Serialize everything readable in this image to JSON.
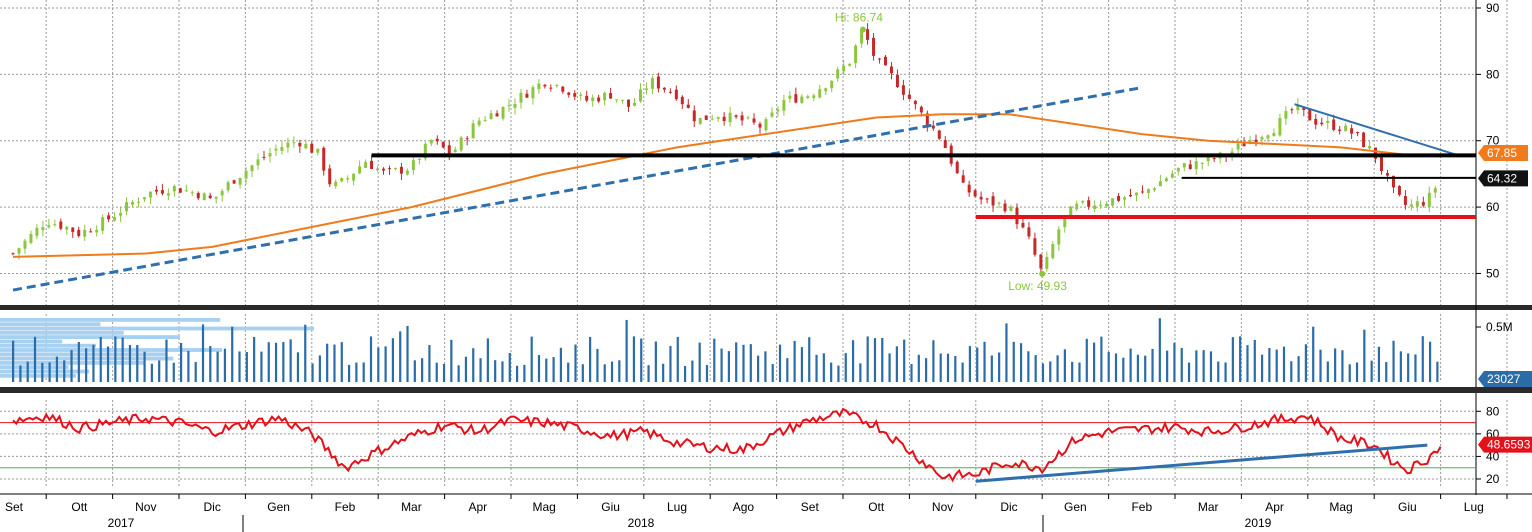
{
  "chart_data": {
    "type": "line",
    "months": [
      "Set",
      "Ott",
      "Nov",
      "Dic",
      "Gen",
      "Feb",
      "Mar",
      "Apr",
      "Mag",
      "Giu",
      "Lug",
      "Ago",
      "Set",
      "Ott",
      "Nov",
      "Dic",
      "Gen",
      "Feb",
      "Mar",
      "Apr",
      "Mag",
      "Giu",
      "Lug"
    ],
    "years": [
      "2017",
      "2018",
      "2019"
    ],
    "price": {
      "yticks": [
        50,
        60,
        70,
        80,
        90
      ],
      "ylim": [
        46,
        90
      ],
      "hi_label": "Hi: 86.74",
      "low_label": "Low: 49.93",
      "last_price_tag": "64.32",
      "ma_tag": "67.85",
      "close_points": [
        [
          0,
          53
        ],
        [
          0.5,
          58
        ],
        [
          0.8,
          57
        ],
        [
          1,
          56
        ],
        [
          1.4,
          58
        ],
        [
          1.7,
          60
        ],
        [
          2,
          62
        ],
        [
          2.4,
          63
        ],
        [
          2.8,
          62
        ],
        [
          3,
          61
        ],
        [
          3.3,
          64
        ],
        [
          3.7,
          67
        ],
        [
          4,
          69
        ],
        [
          4.3,
          70
        ],
        [
          4.6,
          68
        ],
        [
          4.8,
          63
        ],
        [
          5,
          64
        ],
        [
          5.3,
          67
        ],
        [
          5.6,
          65
        ],
        [
          6,
          66
        ],
        [
          6.3,
          70
        ],
        [
          6.6,
          68
        ],
        [
          7,
          73
        ],
        [
          7.4,
          75
        ],
        [
          7.7,
          77
        ],
        [
          8,
          79
        ],
        [
          8.3,
          78
        ],
        [
          8.6,
          76
        ],
        [
          9,
          77
        ],
        [
          9.3,
          75
        ],
        [
          9.6,
          79
        ],
        [
          10,
          77
        ],
        [
          10.3,
          73
        ],
        [
          10.6,
          74
        ],
        [
          11,
          73
        ],
        [
          11.3,
          72
        ],
        [
          11.6,
          76
        ],
        [
          12,
          77
        ],
        [
          12.3,
          79
        ],
        [
          12.6,
          82
        ],
        [
          12.8,
          86.74
        ],
        [
          13,
          82
        ],
        [
          13.3,
          79
        ],
        [
          13.6,
          75
        ],
        [
          14,
          70
        ],
        [
          14.3,
          63
        ],
        [
          14.6,
          61
        ],
        [
          15,
          60
        ],
        [
          15.3,
          55
        ],
        [
          15.5,
          49.93
        ],
        [
          15.8,
          58
        ],
        [
          16,
          60
        ],
        [
          16.5,
          61
        ],
        [
          17,
          62
        ],
        [
          17.3,
          64
        ],
        [
          17.6,
          66
        ],
        [
          18,
          67
        ],
        [
          18.3,
          68
        ],
        [
          18.6,
          70
        ],
        [
          19,
          72
        ],
        [
          19.3,
          75
        ],
        [
          19.6,
          73
        ],
        [
          20,
          72
        ],
        [
          20.2,
          71
        ],
        [
          20.5,
          68
        ],
        [
          20.8,
          62
        ],
        [
          21,
          60
        ],
        [
          21.3,
          61
        ],
        [
          21.5,
          64.32
        ]
      ],
      "ma200_points": [
        [
          0,
          52.5
        ],
        [
          2,
          53
        ],
        [
          3,
          54
        ],
        [
          4,
          56
        ],
        [
          5,
          58
        ],
        [
          6,
          60
        ],
        [
          7,
          62.5
        ],
        [
          8,
          65
        ],
        [
          9,
          67
        ],
        [
          10,
          69
        ],
        [
          11,
          70.5
        ],
        [
          12,
          72
        ],
        [
          13,
          73.5
        ],
        [
          14,
          74
        ],
        [
          15,
          74
        ],
        [
          16,
          72.5
        ],
        [
          17,
          71
        ],
        [
          18,
          70
        ],
        [
          19,
          69.5
        ],
        [
          20,
          69
        ],
        [
          21,
          67.85
        ]
      ],
      "trendline_dashed": [
        [
          0,
          47.5
        ],
        [
          17,
          78
        ]
      ],
      "trendline_down": [
        [
          19.3,
          75.5
        ],
        [
          22,
          68.5
        ]
      ],
      "support_lines": [
        {
          "name": "black-resistance",
          "y": 67.8,
          "x1": 5.4,
          "x2": 22.3,
          "color": "#000000"
        },
        {
          "name": "black-short",
          "y": 64.4,
          "x1": 17.6,
          "x2": 22.3,
          "color": "#000000"
        },
        {
          "name": "red-support",
          "y": 58.5,
          "x1": 14.5,
          "x2": 22.3,
          "color": "#e4111a"
        }
      ]
    },
    "volume": {
      "ytick_label": "0.5M",
      "last_volume_tag": "23027",
      "bar_color": "#2b6ca8",
      "profile_color": "#a8d0f0"
    },
    "rsi": {
      "yticks": [
        20,
        40,
        60,
        80
      ],
      "ylim": [
        12,
        90
      ],
      "upper_band": 70,
      "lower_band": 30,
      "last_rsi_tag": "48.6593",
      "line_color": "#e4111a",
      "rsi_points": [
        [
          0,
          72
        ],
        [
          0.5,
          76
        ],
        [
          1,
          65
        ],
        [
          1.5,
          70
        ],
        [
          2,
          74
        ],
        [
          2.5,
          70
        ],
        [
          3,
          62
        ],
        [
          3.5,
          68
        ],
        [
          4,
          74
        ],
        [
          4.5,
          60
        ],
        [
          5,
          30
        ],
        [
          5.5,
          45
        ],
        [
          6,
          58
        ],
        [
          6.5,
          68
        ],
        [
          7,
          62
        ],
        [
          7.5,
          72
        ],
        [
          8,
          70
        ],
        [
          8.5,
          65
        ],
        [
          9,
          58
        ],
        [
          9.5,
          62
        ],
        [
          10,
          52
        ],
        [
          10.5,
          48
        ],
        [
          11,
          46
        ],
        [
          11.5,
          60
        ],
        [
          12,
          72
        ],
        [
          12.5,
          78
        ],
        [
          13,
          68
        ],
        [
          13.5,
          45
        ],
        [
          14,
          22
        ],
        [
          14.5,
          24
        ],
        [
          15,
          35
        ],
        [
          15.5,
          30
        ],
        [
          16,
          55
        ],
        [
          16.5,
          62
        ],
        [
          17,
          64
        ],
        [
          17.5,
          66
        ],
        [
          18,
          62
        ],
        [
          18.5,
          66
        ],
        [
          19,
          72
        ],
        [
          19.5,
          76
        ],
        [
          20,
          56
        ],
        [
          20.5,
          50
        ],
        [
          20.8,
          35
        ],
        [
          21,
          28
        ],
        [
          21.3,
          38
        ],
        [
          21.5,
          48.6593
        ]
      ],
      "trendline": [
        [
          14.5,
          18
        ],
        [
          21.3,
          50
        ]
      ]
    },
    "colors": {
      "candle_up": "#8cc63f",
      "candle_down": "#c62828",
      "ma200": "#f07b1c",
      "trend_blue": "#2f6fae",
      "rsi_upper_band": "#e4111a",
      "rsi_lower_band": "#3bbf3b"
    }
  }
}
